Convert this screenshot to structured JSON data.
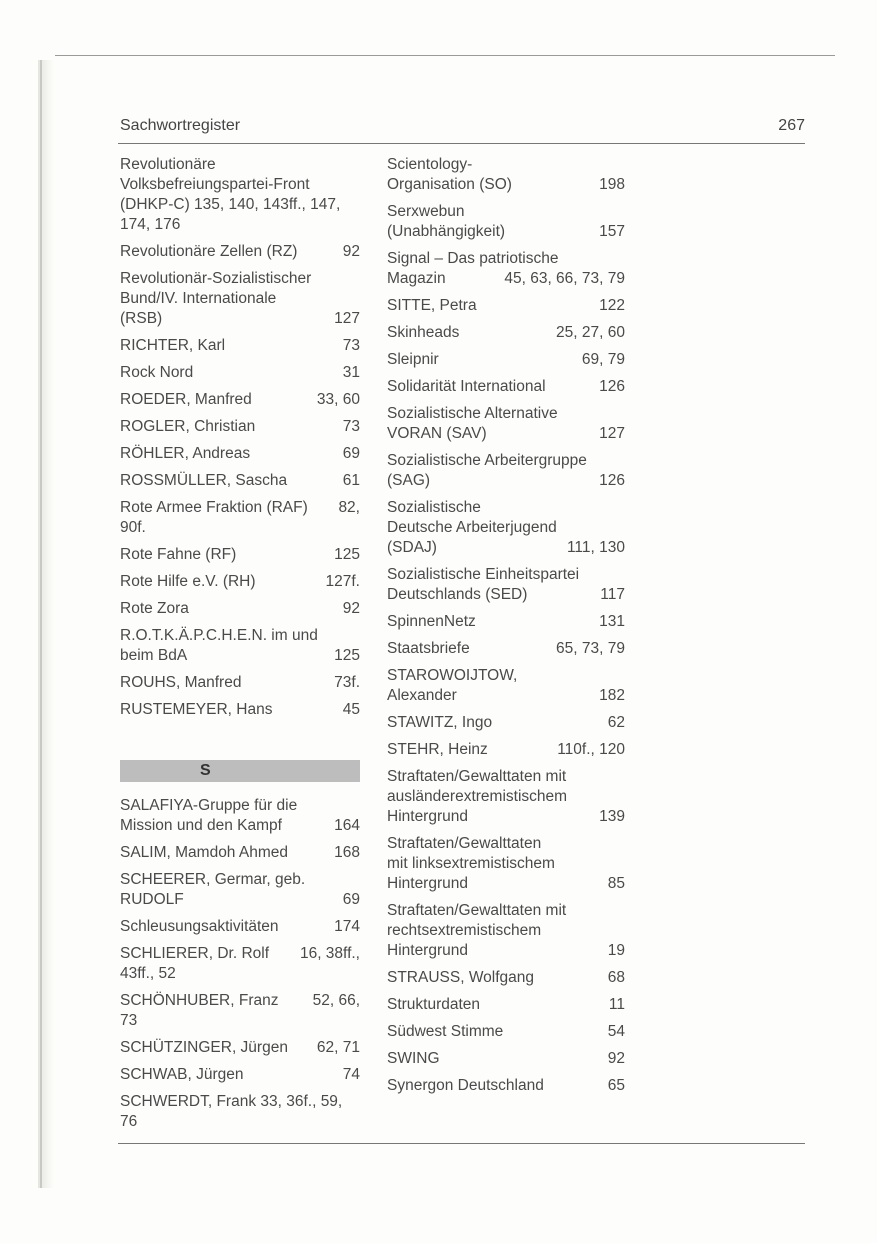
{
  "header": {
    "title": "Sachwortregister",
    "page_number": "267"
  },
  "left_column": {
    "entries_before": [
      {
        "lines": [
          {
            "t": "Revolutionäre"
          },
          {
            "t": "Volksbefreiungspartei-Front"
          },
          {
            "t": "(DHKP-C) 135, 140, 143ff., 147,"
          },
          {
            "t": "174, 176"
          }
        ]
      },
      {
        "lines": [
          {
            "t": "Revolutionäre Zellen (RZ)",
            "p": "92"
          }
        ]
      },
      {
        "lines": [
          {
            "t": "Revolutionär-Sozialistischer"
          },
          {
            "t": "Bund/IV. Internationale"
          },
          {
            "t": "(RSB)",
            "p": "127"
          }
        ]
      },
      {
        "lines": [
          {
            "t": "RICHTER, Karl",
            "p": "73"
          }
        ]
      },
      {
        "lines": [
          {
            "t": "Rock Nord",
            "p": "31"
          }
        ]
      },
      {
        "lines": [
          {
            "t": "ROEDER, Manfred",
            "p": "33, 60"
          }
        ]
      },
      {
        "lines": [
          {
            "t": "ROGLER, Christian",
            "p": "73"
          }
        ]
      },
      {
        "lines": [
          {
            "t": "RÖHLER, Andreas",
            "p": "69"
          }
        ]
      },
      {
        "lines": [
          {
            "t": "ROSSMÜLLER, Sascha",
            "p": "61"
          }
        ]
      },
      {
        "lines": [
          {
            "t": "Rote Armee Fraktion (RAF)",
            "p": "82,"
          },
          {
            "t": "90f."
          }
        ]
      },
      {
        "lines": [
          {
            "t": "Rote Fahne (RF)",
            "p": "125"
          }
        ]
      },
      {
        "lines": [
          {
            "t": "Rote Hilfe e.V. (RH)",
            "p": "127f."
          }
        ]
      },
      {
        "lines": [
          {
            "t": "Rote Zora",
            "p": "92"
          }
        ]
      },
      {
        "lines": [
          {
            "t": "R.O.T.K.Ä.P.C.H.E.N. im und"
          },
          {
            "t": "beim BdA",
            "p": "125"
          }
        ]
      },
      {
        "lines": [
          {
            "t": "ROUHS, Manfred",
            "p": "73f."
          }
        ]
      },
      {
        "lines": [
          {
            "t": "RUSTEMEYER, Hans",
            "p": "45"
          }
        ]
      }
    ],
    "section_letter": "S",
    "entries_after": [
      {
        "lines": [
          {
            "t": "SALAFIYA-Gruppe für die"
          },
          {
            "t": "Mission und den Kampf",
            "p": "164"
          }
        ]
      },
      {
        "lines": [
          {
            "t": "SALIM, Mamdoh Ahmed",
            "p": "168"
          }
        ]
      },
      {
        "lines": [
          {
            "t": "SCHEERER, Germar, geb."
          },
          {
            "t": "RUDOLF",
            "p": "69"
          }
        ]
      },
      {
        "lines": [
          {
            "t": "Schleusungsaktivitäten",
            "p": "174"
          }
        ]
      },
      {
        "lines": [
          {
            "t": "SCHLIERER, Dr. Rolf",
            "p": "16, 38ff.,"
          },
          {
            "t": "43ff., 52"
          }
        ]
      },
      {
        "lines": [
          {
            "t": "SCHÖNHUBER, Franz",
            "p": "52, 66,"
          },
          {
            "t": "73"
          }
        ]
      },
      {
        "lines": [
          {
            "t": "SCHÜTZINGER, Jürgen",
            "p": "62, 71"
          }
        ]
      },
      {
        "lines": [
          {
            "t": "SCHWAB, Jürgen",
            "p": "74"
          }
        ]
      },
      {
        "lines": [
          {
            "t": "SCHWERDT, Frank 33, 36f., 59,"
          },
          {
            "t": "76"
          }
        ]
      }
    ]
  },
  "right_column": {
    "entries": [
      {
        "lines": [
          {
            "t": "Scientology-"
          },
          {
            "t": "Organisation (SO)",
            "p": "198"
          }
        ]
      },
      {
        "lines": [
          {
            "t": "Serxwebun"
          },
          {
            "t": "(Unabhängigkeit)",
            "p": "157"
          }
        ]
      },
      {
        "lines": [
          {
            "t": "Signal – Das patriotische"
          },
          {
            "t": "Magazin",
            "p": "45, 63, 66, 73, 79"
          }
        ]
      },
      {
        "lines": [
          {
            "t": "SITTE, Petra",
            "p": "122"
          }
        ]
      },
      {
        "lines": [
          {
            "t": "Skinheads",
            "p": "25, 27, 60"
          }
        ]
      },
      {
        "lines": [
          {
            "t": "Sleipnir",
            "p": "69, 79"
          }
        ]
      },
      {
        "lines": [
          {
            "t": "Solidarität International",
            "p": "126"
          }
        ]
      },
      {
        "lines": [
          {
            "t": "Sozialistische Alternative"
          },
          {
            "t": "VORAN (SAV)",
            "p": "127"
          }
        ]
      },
      {
        "lines": [
          {
            "t": "Sozialistische Arbeitergruppe"
          },
          {
            "t": "(SAG)",
            "p": "126"
          }
        ]
      },
      {
        "lines": [
          {
            "t": "Sozialistische"
          },
          {
            "t": "Deutsche Arbeiterjugend"
          },
          {
            "t": "(SDAJ)",
            "p": "111, 130"
          }
        ]
      },
      {
        "lines": [
          {
            "t": "Sozialistische Einheitspartei"
          },
          {
            "t": "Deutschlands (SED)",
            "p": "117"
          }
        ]
      },
      {
        "lines": [
          {
            "t": "SpinnenNetz",
            "p": "131"
          }
        ]
      },
      {
        "lines": [
          {
            "t": "Staatsbriefe",
            "p": "65, 73, 79"
          }
        ]
      },
      {
        "lines": [
          {
            "t": "STAROWOIJTOW,"
          },
          {
            "t": "Alexander",
            "p": "182"
          }
        ]
      },
      {
        "lines": [
          {
            "t": "STAWITZ, Ingo",
            "p": "62"
          }
        ]
      },
      {
        "lines": [
          {
            "t": "STEHR, Heinz",
            "p": "110f., 120"
          }
        ]
      },
      {
        "lines": [
          {
            "t": "Straftaten/Gewalttaten mit"
          },
          {
            "t": "ausländerextremistischem"
          },
          {
            "t": "Hintergrund",
            "p": "139"
          }
        ]
      },
      {
        "lines": [
          {
            "t": "Straftaten/Gewalttaten"
          },
          {
            "t": "mit linksextremistischem"
          },
          {
            "t": "Hintergrund",
            "p": "85"
          }
        ]
      },
      {
        "lines": [
          {
            "t": "Straftaten/Gewalttaten mit"
          },
          {
            "t": "rechtsextremistischem"
          },
          {
            "t": "Hintergrund",
            "p": "19"
          }
        ]
      },
      {
        "lines": [
          {
            "t": "STRAUSS, Wolfgang",
            "p": "68"
          }
        ]
      },
      {
        "lines": [
          {
            "t": "Strukturdaten",
            "p": "11"
          }
        ]
      },
      {
        "lines": [
          {
            "t": "Südwest Stimme",
            "p": "54"
          }
        ]
      },
      {
        "lines": [
          {
            "t": "SWING",
            "p": "92"
          }
        ]
      },
      {
        "lines": [
          {
            "t": "Synergon Deutschland",
            "p": "65"
          }
        ]
      }
    ]
  }
}
